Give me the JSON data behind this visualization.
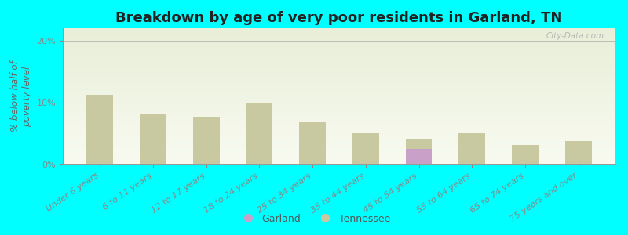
{
  "title": "Breakdown by age of very poor residents in Garland, TN",
  "ylabel": "% below half of\npoverty level",
  "categories": [
    "Under 6 years",
    "6 to 11 years",
    "12 to 17 years",
    "18 to 24 years",
    "25 to 34 years",
    "35 to 44 years",
    "45 to 54 years",
    "55 to 64 years",
    "65 to 74 years",
    "75 years and over"
  ],
  "tennessee_values": [
    11.2,
    8.2,
    7.6,
    9.8,
    6.8,
    5.0,
    4.2,
    5.0,
    3.2,
    3.8
  ],
  "garland_values": [
    0,
    0,
    0,
    0,
    0,
    0,
    2.5,
    0,
    0,
    0
  ],
  "tennessee_color": "#c8c9a0",
  "garland_color": "#c9a0c8",
  "background_color": "#00ffff",
  "plot_bg_top": "#e8eed8",
  "plot_bg_bottom": "#f8faf0",
  "ylim": [
    0,
    22
  ],
  "yticks": [
    0,
    10,
    20
  ],
  "ytick_labels": [
    "0%",
    "10%",
    "20%"
  ],
  "bar_width": 0.5,
  "title_fontsize": 13,
  "axis_label_fontsize": 8.5,
  "tick_fontsize": 8,
  "legend_fontsize": 9,
  "watermark": "City-Data.com"
}
